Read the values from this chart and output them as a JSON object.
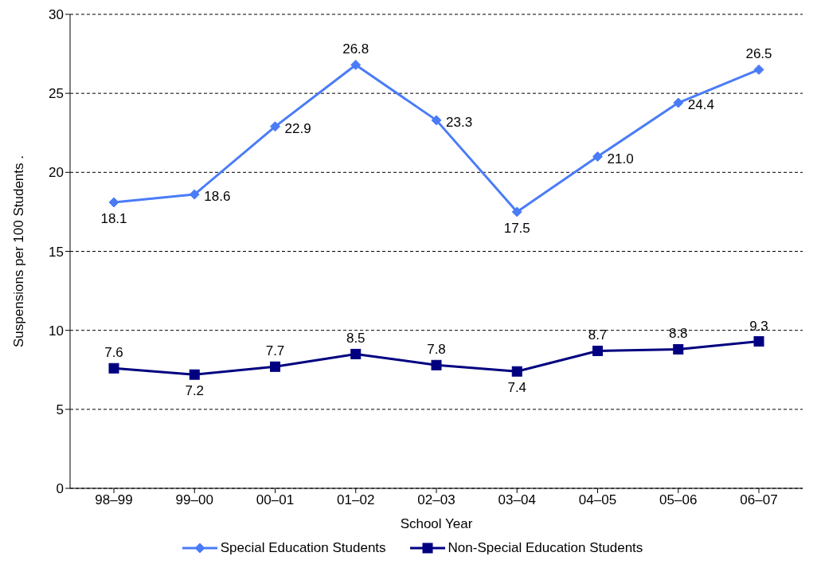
{
  "chart_data": {
    "type": "line",
    "xlabel": "School Year",
    "ylabel": "Suspensions per 100 Students    .",
    "categories": [
      "98–99",
      "99–00",
      "00–01",
      "01–02",
      "02–03",
      "03–04",
      "04–05",
      "05–06",
      "06–07"
    ],
    "series": [
      {
        "name": "Special Education Students",
        "color": "#4a7cf7",
        "marker": "diamond",
        "values": [
          18.1,
          18.6,
          22.9,
          26.8,
          23.3,
          17.5,
          21.0,
          24.4,
          26.5
        ],
        "value_labels": [
          "18.1",
          "18.6",
          "22.9",
          "26.8",
          "23.3",
          "17.5",
          "21.0",
          "24.4",
          "26.5"
        ]
      },
      {
        "name": "Non-Special Education Students",
        "color": "#000080",
        "marker": "square",
        "values": [
          7.6,
          7.2,
          7.7,
          8.5,
          7.8,
          7.4,
          8.7,
          8.8,
          9.3
        ],
        "value_labels": [
          "7.6",
          "7.2",
          "7.7",
          "8.5",
          "7.8",
          "7.4",
          "8.7",
          "8.8",
          "9.3"
        ]
      }
    ],
    "ylim": [
      0,
      30
    ],
    "yticks": [
      0,
      5,
      10,
      15,
      20,
      25,
      30
    ],
    "grid": "y",
    "legend": "bottom",
    "line_style": "solid"
  }
}
